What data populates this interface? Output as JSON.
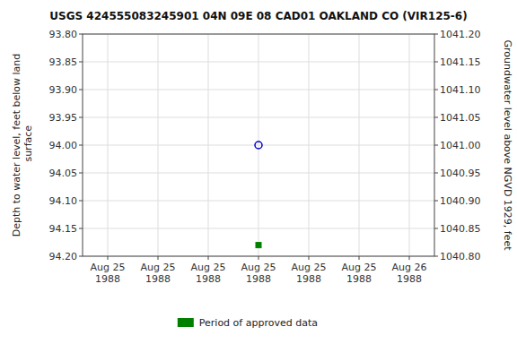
{
  "chart_data": {
    "type": "scatter",
    "title": "USGS 424555083245901 04N 09E 08 CAD01 OAKLAND CO (VIR125-6)",
    "ylabel": "Depth to water level, feet below land\n surface",
    "y2label": "Groundwater level above NGVD 1929, feet",
    "categories": [
      "Aug 25\n1988",
      "Aug 25\n1988",
      "Aug 25\n1988",
      "Aug 25\n1988",
      "Aug 25\n1988",
      "Aug 25\n1988",
      "Aug 26\n1988"
    ],
    "series": [
      {
        "color": "#0000cc",
        "marker": "circle",
        "values": [
          null,
          null,
          null,
          94.0,
          null,
          null,
          null
        ]
      },
      {
        "name": "Period of approved data",
        "color": "#008000",
        "marker": "square",
        "values": [
          null,
          null,
          null,
          94.18,
          null,
          null,
          null
        ]
      }
    ],
    "ylim": [
      94.2,
      93.8
    ],
    "yticks": [
      {
        "value": 93.8,
        "label": "93.80"
      },
      {
        "value": 93.85,
        "label": "93.85"
      },
      {
        "value": 93.9,
        "label": "93.90"
      },
      {
        "value": 93.95,
        "label": "93.95"
      },
      {
        "value": 94.0,
        "label": "94.00"
      },
      {
        "value": 94.05,
        "label": "94.05"
      },
      {
        "value": 94.1,
        "label": "94.10"
      },
      {
        "value": 94.15,
        "label": "94.15"
      },
      {
        "value": 94.2,
        "label": "94.20"
      }
    ],
    "y2lim": [
      1040.8,
      1041.2
    ],
    "y2ticks": [
      {
        "value": 1040.8,
        "label": "1040.80"
      },
      {
        "value": 1040.85,
        "label": "1040.85"
      },
      {
        "value": 1040.9,
        "label": "1040.90"
      },
      {
        "value": 1040.95,
        "label": "1040.95"
      },
      {
        "value": 1041.0,
        "label": "1041.00"
      },
      {
        "value": 1041.05,
        "label": "1041.05"
      },
      {
        "value": 1041.1,
        "label": "1041.10"
      },
      {
        "value": 1041.15,
        "label": "1041.15"
      },
      {
        "value": 1041.2,
        "label": "1041.20"
      }
    ],
    "grid": true,
    "legend": "bottom"
  }
}
